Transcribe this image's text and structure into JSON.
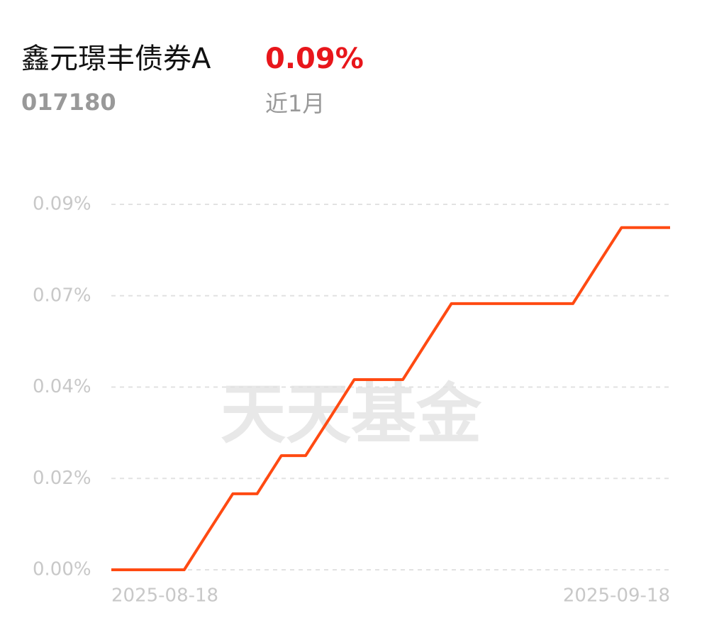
{
  "chart_data": {
    "type": "line",
    "title": "鑫元璟丰债券A",
    "code": "017180",
    "return": "0.09%",
    "period": "近1月",
    "watermark": "天天基金",
    "categories": [
      "2025-08-18",
      null,
      null,
      null,
      null,
      null,
      null,
      null,
      null,
      null,
      null,
      null,
      null,
      null,
      null,
      null,
      null,
      null,
      null,
      null,
      null,
      null,
      null,
      "2025-09-18"
    ],
    "values": [
      0,
      0,
      0,
      0,
      0.0092,
      0.0183,
      0.0183,
      0.0275,
      0.0275,
      0.0366,
      0.0458,
      0.0458,
      0.0458,
      0.055,
      0.0641,
      0.0641,
      0.0641,
      0.0641,
      0.0641,
      0.0641,
      0.0733,
      0.0824,
      0.0824,
      0.0824
    ],
    "color": "#ff4a12",
    "ylim": [
      0,
      0.088
    ],
    "yticks": [
      {
        "value": 0,
        "label": "0.00%"
      },
      {
        "value": 0.022,
        "label": "0.02%"
      },
      {
        "value": 0.044,
        "label": "0.04%"
      },
      {
        "value": 0.066,
        "label": "0.07%"
      },
      {
        "value": 0.088,
        "label": "0.09%"
      }
    ],
    "grid": true
  }
}
